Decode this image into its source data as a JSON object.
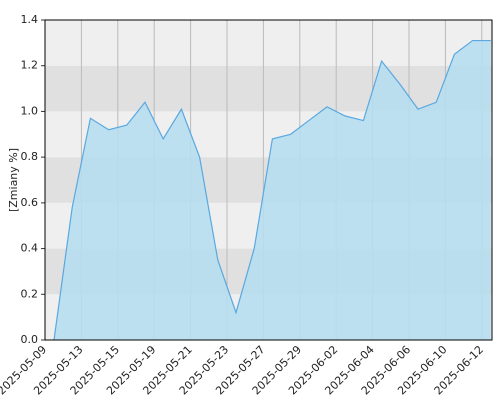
{
  "chart_data": {
    "type": "area",
    "y_label": "[Zmiany %]",
    "categories": [
      "2025-05-09",
      null,
      "2025-05-13",
      null,
      "2025-05-15",
      null,
      "2025-05-19",
      null,
      "2025-05-21",
      null,
      "2025-05-23",
      null,
      "2025-05-27",
      null,
      "2025-05-29",
      null,
      "2025-06-02",
      null,
      "2025-06-04",
      null,
      "2025-06-06",
      null,
      "2025-06-10",
      null,
      "2025-06-12"
    ],
    "values": [
      0,
      0.58,
      0.97,
      0.92,
      0.94,
      1.04,
      0.88,
      1.01,
      0.8,
      0.35,
      0.12,
      0.4,
      0.88,
      0.9,
      0.96,
      1.02,
      0.98,
      0.96,
      1.22,
      1.12,
      1.01,
      1.04,
      1.25,
      1.31,
      1.31
    ],
    "color": "#5aa8e0",
    "fill": "#b6deee",
    "ylim": [
      0,
      1.4
    ],
    "yticks": [
      {
        "value": 0,
        "label": "0.0"
      },
      0.2,
      0.4,
      0.6,
      0.8,
      {
        "value": 1,
        "label": "1.0"
      },
      1.2,
      1.4
    ],
    "grid": true
  }
}
